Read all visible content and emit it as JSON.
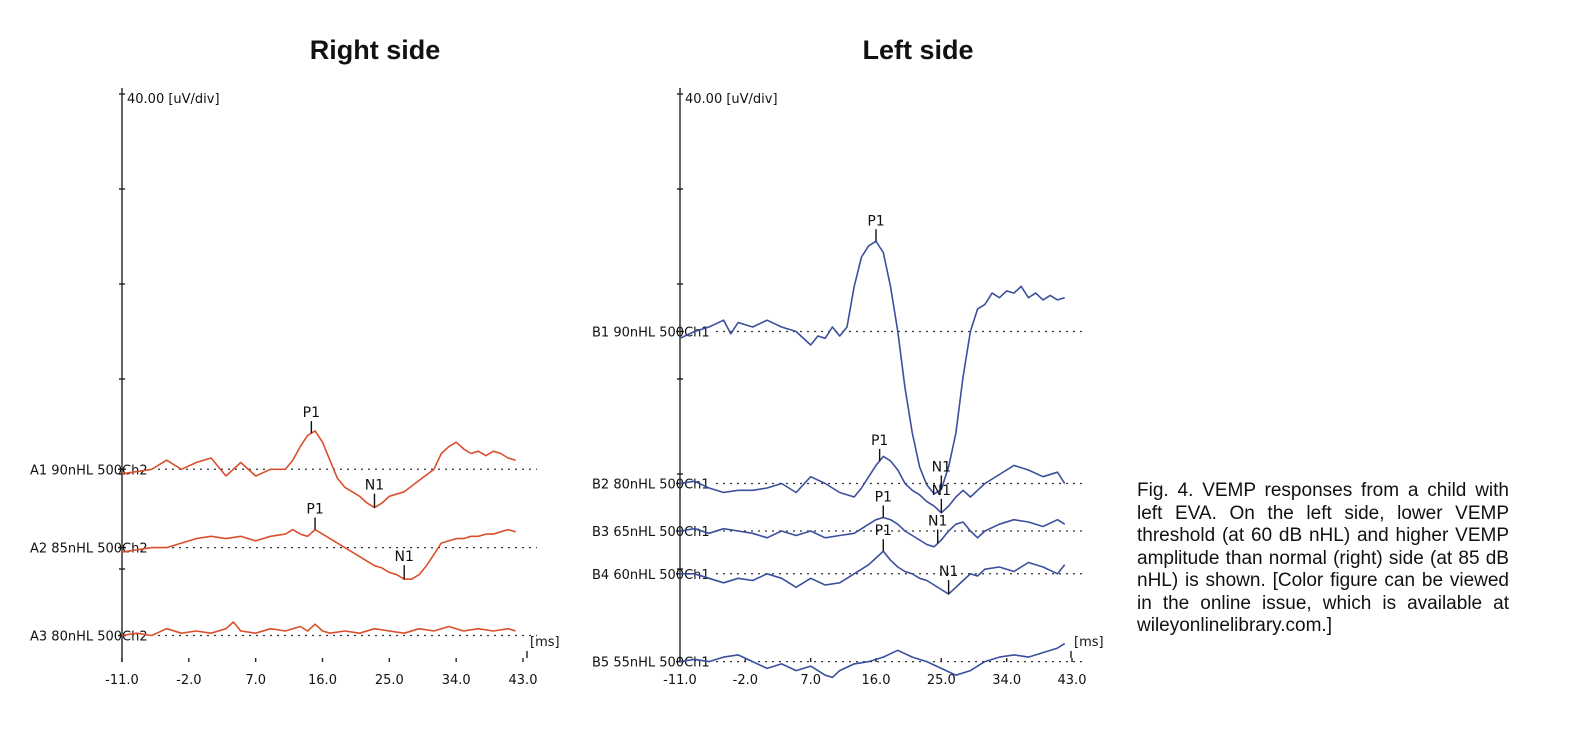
{
  "caption": "Fig. 4. VEMP responses from a child with left EVA. On the left side, lower VEMP threshold (at 60 dB nHL) and higher VEMP amplitude than normal (right) side (at 85 dB nHL) is shown. [Color figure can be viewed in the online issue, which is available at wileyonlinelibrary.com.]",
  "colors": {
    "right_trace": "#d9502e",
    "left_trace": "#3c4f9c",
    "axis": "#222222"
  },
  "chart_data": [
    {
      "type": "line",
      "title": "Right side",
      "ylabel": "40.00 [uV/div]",
      "xlabel": "[ms]",
      "xlim": [
        -11.0,
        43.0
      ],
      "x_ticks": [
        "-11.0",
        "-2.0",
        "7.0",
        "16.0",
        "25.0",
        "34.0",
        "43.0"
      ],
      "y_scale_uV_per_div": 40,
      "grid": false,
      "series": [
        {
          "name": "A1 90nHL 500Ch2",
          "baseline_uV": -158,
          "peaks": [
            {
              "label": "P1",
              "x": 14.5
            },
            {
              "label": "N1",
              "x": 23.0
            }
          ],
          "x": [
            -11,
            -7,
            -5,
            -3,
            -1,
            1,
            3,
            5,
            7,
            9,
            11,
            12,
            13,
            14,
            15,
            16,
            17,
            18,
            19,
            20,
            21,
            22,
            23,
            24,
            25,
            27,
            29,
            31,
            32,
            33,
            34,
            35,
            36,
            37,
            38,
            39,
            40,
            41,
            42
          ],
          "y": [
            -2,
            0,
            4,
            0,
            3,
            5,
            -3,
            3,
            -3,
            0,
            0,
            4,
            10,
            15,
            17,
            12,
            4,
            -4,
            -8,
            -10,
            -12,
            -15,
            -17,
            -15,
            -12,
            -10,
            -5,
            0,
            7,
            10,
            12,
            9,
            7,
            8,
            6,
            8,
            7,
            5,
            4
          ]
        },
        {
          "name": "A2 85nHL 500Ch2",
          "baseline_uV": -191,
          "peaks": [
            {
              "label": "P1",
              "x": 15.0
            },
            {
              "label": "N1",
              "x": 27.0
            }
          ],
          "x": [
            -11,
            -7,
            -5,
            -3,
            -1,
            1,
            3,
            5,
            7,
            9,
            11,
            12,
            13,
            14,
            15,
            16,
            17,
            18,
            19,
            20,
            21,
            22,
            23,
            24,
            25,
            26,
            27,
            28,
            29,
            30,
            31,
            32,
            33,
            34,
            35,
            36,
            37,
            38,
            39,
            40,
            41,
            42
          ],
          "y": [
            -2,
            0,
            0,
            2,
            4,
            5,
            4,
            5,
            3,
            5,
            6,
            8,
            6,
            5,
            8,
            6,
            4,
            2,
            0,
            -2,
            -4,
            -6,
            -8,
            -9,
            -11,
            -12,
            -14,
            -14,
            -12,
            -8,
            -3,
            2,
            3,
            4,
            4,
            5,
            5,
            6,
            6,
            7,
            8,
            7
          ]
        },
        {
          "name": "A3 80nHL 500Ch2",
          "baseline_uV": -228,
          "peaks": [],
          "x": [
            -11,
            -9,
            -7,
            -5,
            -3,
            -1,
            1,
            3,
            4,
            5,
            7,
            9,
            11,
            13,
            14,
            15,
            16,
            17,
            19,
            21,
            23,
            25,
            27,
            29,
            31,
            33,
            35,
            37,
            39,
            41,
            42
          ],
          "y": [
            0,
            1,
            0,
            3,
            1,
            2,
            1,
            3,
            6,
            2,
            1,
            3,
            2,
            4,
            2,
            5,
            2,
            1,
            2,
            1,
            3,
            2,
            1,
            3,
            2,
            4,
            2,
            3,
            2,
            3,
            2
          ]
        }
      ]
    },
    {
      "type": "line",
      "title": "Left side",
      "ylabel": "40.00 [uV/div]",
      "xlabel": "[ms]",
      "xlim": [
        -11.0,
        43.0
      ],
      "x_ticks": [
        "-11.0",
        "-2.0",
        "7.0",
        "16.0",
        "25.0",
        "34.0",
        "43.0"
      ],
      "y_scale_uV_per_div": 40,
      "grid": false,
      "series": [
        {
          "name": "B1 90nHL 500Ch1",
          "baseline_uV": -100,
          "peaks": [
            {
              "label": "P1",
              "x": 16.0
            },
            {
              "label": "N1",
              "x": 25.0
            }
          ],
          "x": [
            -11,
            -9,
            -7,
            -5,
            -4,
            -3,
            -1,
            1,
            3,
            5,
            7,
            8,
            9,
            10,
            11,
            12,
            13,
            14,
            15,
            16,
            17,
            18,
            19,
            20,
            21,
            22,
            23,
            24,
            25,
            26,
            27,
            28,
            29,
            30,
            31,
            32,
            33,
            34,
            35,
            36,
            37,
            38,
            39,
            40,
            41,
            42
          ],
          "y": [
            -3,
            0,
            2,
            5,
            -1,
            4,
            2,
            5,
            2,
            0,
            -6,
            -2,
            -3,
            2,
            -2,
            2,
            20,
            33,
            38,
            40,
            35,
            20,
            0,
            -25,
            -45,
            -60,
            -68,
            -72,
            -70,
            -60,
            -45,
            -20,
            0,
            10,
            12,
            17,
            15,
            18,
            17,
            20,
            15,
            17,
            14,
            16,
            14,
            15
          ]
        },
        {
          "name": "B2 80nHL 500Ch1",
          "baseline_uV": -164,
          "peaks": [
            {
              "label": "P1",
              "x": 16.5
            },
            {
              "label": "N1",
              "x": 25.0
            }
          ],
          "x": [
            -11,
            -9,
            -7,
            -5,
            -3,
            -1,
            1,
            3,
            5,
            7,
            9,
            11,
            13,
            14,
            15,
            16,
            17,
            18,
            19,
            20,
            21,
            22,
            23,
            24,
            25,
            26,
            27,
            28,
            29,
            30,
            31,
            33,
            35,
            37,
            39,
            41,
            42
          ],
          "y": [
            0,
            1,
            -2,
            -4,
            -3,
            -3,
            -2,
            0,
            -4,
            3,
            0,
            -4,
            -6,
            -2,
            3,
            8,
            12,
            10,
            6,
            0,
            -3,
            -5,
            -8,
            -10,
            -13,
            -10,
            -6,
            -3,
            -6,
            -3,
            0,
            4,
            8,
            6,
            3,
            5,
            0
          ]
        },
        {
          "name": "B3 65nHL 500Ch1",
          "baseline_uV": -184,
          "peaks": [
            {
              "label": "P1",
              "x": 17.0
            },
            {
              "label": "N1",
              "x": 24.5
            }
          ],
          "x": [
            -11,
            -9,
            -7,
            -5,
            -3,
            -1,
            1,
            3,
            5,
            7,
            9,
            11,
            13,
            15,
            16,
            17,
            18,
            19,
            20,
            21,
            22,
            23,
            24,
            25,
            26,
            27,
            28,
            29,
            30,
            31,
            33,
            35,
            37,
            39,
            41,
            42
          ],
          "y": [
            0,
            1,
            -1,
            1,
            0,
            -1,
            -3,
            0,
            -2,
            0,
            -3,
            -2,
            -1,
            3,
            5,
            6,
            5,
            3,
            0,
            -2,
            -4,
            -6,
            -7,
            -4,
            0,
            3,
            4,
            0,
            -3,
            0,
            3,
            5,
            4,
            2,
            5,
            3
          ]
        },
        {
          "name": "B4 60nHL 500Ch1",
          "baseline_uV": -202,
          "peaks": [
            {
              "label": "P1",
              "x": 17.0
            },
            {
              "label": "N1",
              "x": 26.0
            }
          ],
          "x": [
            -11,
            -9,
            -7,
            -5,
            -3,
            -1,
            1,
            3,
            5,
            7,
            9,
            11,
            13,
            15,
            16,
            17,
            18,
            19,
            20,
            21,
            22,
            23,
            24,
            25,
            26,
            27,
            28,
            29,
            30,
            31,
            33,
            35,
            37,
            39,
            41,
            42
          ],
          "y": [
            0,
            0,
            -2,
            -4,
            -2,
            -3,
            0,
            -2,
            -6,
            -2,
            -5,
            -4,
            0,
            4,
            7,
            10,
            6,
            3,
            1,
            0,
            -2,
            -3,
            -5,
            -7,
            -9,
            -6,
            -3,
            0,
            -1,
            2,
            3,
            1,
            5,
            3,
            0,
            4
          ]
        },
        {
          "name": "B5 55nHL 500Ch1",
          "baseline_uV": -239,
          "peaks": [],
          "x": [
            -11,
            -9,
            -7,
            -5,
            -3,
            -1,
            1,
            3,
            5,
            7,
            9,
            10,
            11,
            13,
            15,
            17,
            19,
            21,
            23,
            25,
            27,
            29,
            31,
            33,
            35,
            37,
            39,
            41,
            42
          ],
          "y": [
            0,
            1,
            0,
            2,
            3,
            0,
            -3,
            -1,
            -4,
            -2,
            -6,
            -7,
            -4,
            -1,
            0,
            2,
            5,
            2,
            0,
            -3,
            -6,
            -4,
            0,
            2,
            3,
            2,
            4,
            6,
            8
          ]
        }
      ]
    }
  ]
}
